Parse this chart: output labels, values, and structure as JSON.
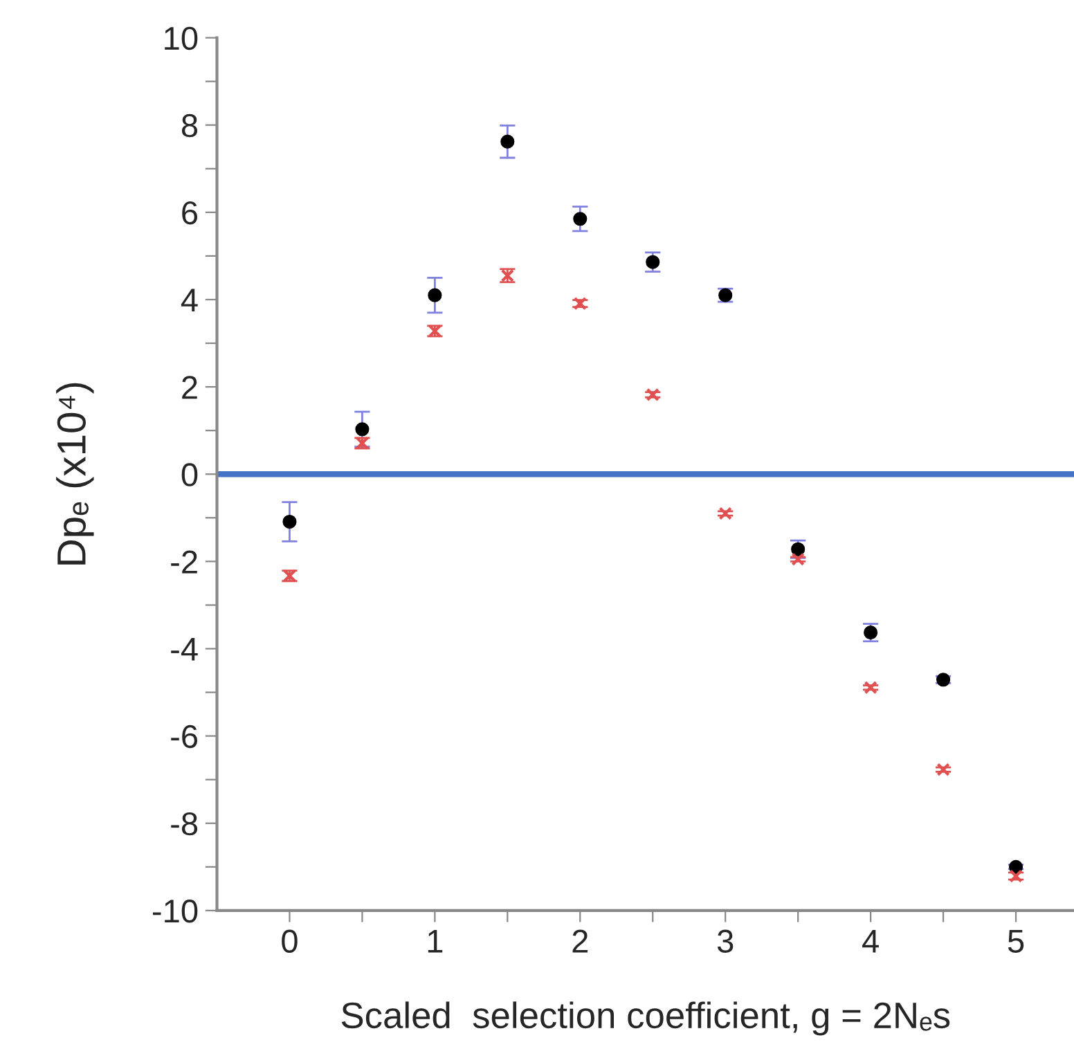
{
  "chart_data": {
    "type": "scatter",
    "xlabel": "Scaled  selection coefficient, g = 2Nₑs",
    "ylabel": "Dpₑ (x10⁴)",
    "x": [
      0,
      0.5,
      1,
      1.5,
      2,
      2.5,
      3,
      3.5,
      4,
      4.5,
      5
    ],
    "series": [
      {
        "color": "#000000",
        "marker": "circle",
        "values": [
          -1.09,
          1.03,
          4.1,
          7.62,
          5.85,
          4.86,
          4.1,
          -1.72,
          -3.63,
          -4.71,
          -9.0
        ],
        "errors": [
          0.45,
          0.4,
          0.4,
          0.37,
          0.28,
          0.22,
          0.15,
          0.2,
          0.2,
          0.08,
          0.05
        ]
      },
      {
        "color": "#e05050",
        "marker": "cross",
        "values": [
          -2.33,
          0.71,
          3.28,
          4.55,
          3.91,
          1.82,
          -0.9,
          -1.95,
          -4.89,
          -6.77,
          -9.21
        ],
        "errors": [
          0.12,
          0.12,
          0.12,
          0.15,
          0.08,
          0.06,
          0.05,
          0.05,
          0.05,
          0.05,
          0.08
        ]
      }
    ],
    "xlim": [
      -0.5,
      5.4
    ],
    "xticks": [
      0,
      {
        "value": 0.5,
        "label": null
      },
      1,
      {
        "value": 1.5,
        "label": null
      },
      2,
      {
        "value": 2.5,
        "label": null
      },
      3,
      {
        "value": 3.5,
        "label": null
      },
      4,
      {
        "value": 4.5,
        "label": null
      },
      5
    ],
    "ylim": [
      -10,
      10
    ],
    "yticks": [
      -10,
      {
        "value": -9,
        "label": null
      },
      -8,
      {
        "value": -7,
        "label": null
      },
      -6,
      {
        "value": -5,
        "label": null
      },
      -4,
      {
        "value": -3,
        "label": null
      },
      -2,
      {
        "value": -1,
        "label": null
      },
      0,
      {
        "value": 1,
        "label": null
      },
      2,
      {
        "value": 3,
        "label": null
      },
      4,
      {
        "value": 5,
        "label": null
      },
      6,
      {
        "value": 7,
        "label": null
      },
      8,
      {
        "value": 9,
        "label": null
      },
      10
    ],
    "ref_lines": [
      {
        "axis": "y",
        "value": 0,
        "color": "#4472c4"
      }
    ],
    "grid": false,
    "legend": false
  }
}
